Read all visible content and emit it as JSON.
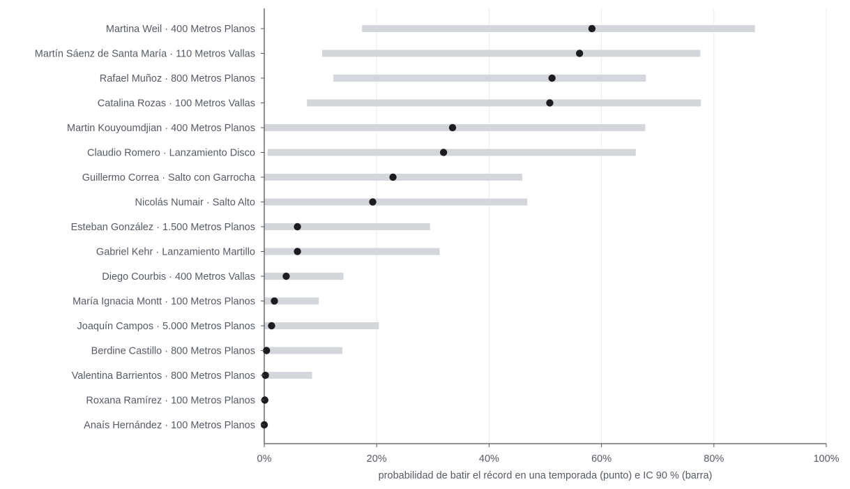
{
  "chart_data": {
    "type": "dot-interval",
    "xlabel": "probabilidad de batir el récord en una temporada (punto) e IC 90 % (barra)",
    "ylabel": "",
    "xlim": [
      0,
      100
    ],
    "x_ticks": [
      {
        "value": 0,
        "label": "0%"
      },
      {
        "value": 20,
        "label": "20%"
      },
      {
        "value": 40,
        "label": "40%"
      },
      {
        "value": 60,
        "label": "60%"
      },
      {
        "value": 80,
        "label": "80%"
      },
      {
        "value": 100,
        "label": "100%"
      }
    ],
    "grid": "vertical",
    "colors": {
      "point": "#1c1d21",
      "interval": "#d3d6db",
      "grid": "#ebebeb",
      "axis": "#555555",
      "text": "#555b66"
    },
    "rows": [
      {
        "label": "Martina Weil · 400 Metros Planos",
        "estimate": 58.3,
        "lower": 17.4,
        "upper": 87.3
      },
      {
        "label": "Martín Sáenz de Santa María · 110 Metros Vallas",
        "estimate": 56.1,
        "lower": 10.3,
        "upper": 77.6
      },
      {
        "label": "Rafael Muñoz · 800 Metros Planos",
        "estimate": 51.2,
        "lower": 12.3,
        "upper": 67.9
      },
      {
        "label": "Catalina Rozas · 100 Metros Vallas",
        "estimate": 50.8,
        "lower": 7.6,
        "upper": 77.7
      },
      {
        "label": "Martin Kouyoumdjian · 400 Metros Planos",
        "estimate": 33.5,
        "lower": 0.0,
        "upper": 67.8
      },
      {
        "label": "Claudio Romero · Lanzamiento Disco",
        "estimate": 31.9,
        "lower": 0.6,
        "upper": 66.1
      },
      {
        "label": "Guillermo Correa · Salto con Garrocha",
        "estimate": 22.9,
        "lower": 0.0,
        "upper": 45.9
      },
      {
        "label": "Nicolás Numair · Salto Alto",
        "estimate": 19.3,
        "lower": 0.0,
        "upper": 46.8
      },
      {
        "label": "Esteban González · 1.500 Metros Planos",
        "estimate": 5.9,
        "lower": 0.0,
        "upper": 29.5
      },
      {
        "label": "Gabriel Kehr · Lanzamiento Martillo",
        "estimate": 5.9,
        "lower": 0.0,
        "upper": 31.2
      },
      {
        "label": "Diego Courbis · 400 Metros Vallas",
        "estimate": 3.9,
        "lower": 0.0,
        "upper": 14.1
      },
      {
        "label": "María Ignacia Montt · 100 Metros Planos",
        "estimate": 1.8,
        "lower": 0.0,
        "upper": 9.7
      },
      {
        "label": "Joaquín Campos · 5.000 Metros Planos",
        "estimate": 1.3,
        "lower": 0.0,
        "upper": 20.4
      },
      {
        "label": "Berdine Castillo · 800 Metros Planos",
        "estimate": 0.4,
        "lower": 0.0,
        "upper": 13.9
      },
      {
        "label": "Valentina Barrientos · 800 Metros Planos",
        "estimate": 0.2,
        "lower": 0.0,
        "upper": 8.5
      },
      {
        "label": "Roxana Ramírez · 100 Metros Planos",
        "estimate": 0.1,
        "lower": 0.0,
        "upper": 0.0
      },
      {
        "label": "Anaís Hernández · 100 Metros Planos",
        "estimate": 0.0,
        "lower": 0.0,
        "upper": 0.0
      }
    ]
  }
}
